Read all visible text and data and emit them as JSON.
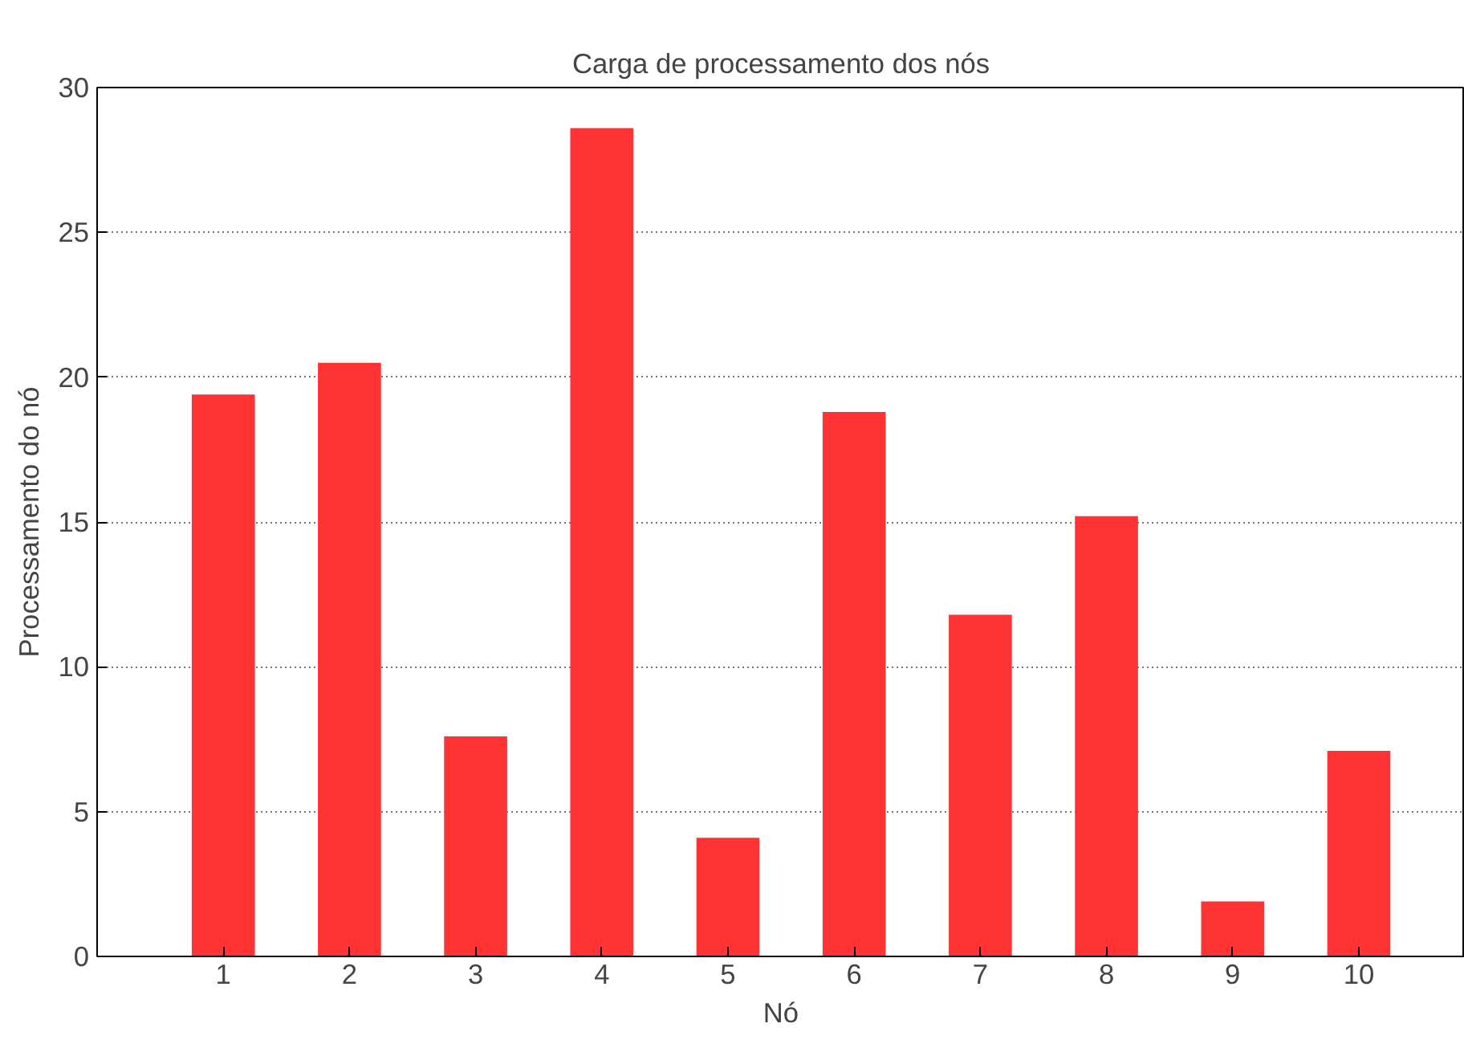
{
  "chart_data": {
    "type": "bar",
    "title": "Carga de processamento dos nós",
    "xlabel": "Nó",
    "ylabel": "Processamento do nó",
    "categories": [
      "1",
      "2",
      "3",
      "4",
      "5",
      "6",
      "7",
      "8",
      "9",
      "10"
    ],
    "values": [
      19.4,
      20.5,
      7.6,
      28.6,
      4.1,
      18.8,
      11.8,
      15.2,
      1.9,
      7.1
    ],
    "color": "#ff3333",
    "ylim": [
      0,
      30
    ],
    "yticks": [
      0,
      5,
      10,
      15,
      20,
      25,
      30
    ],
    "grid": "y"
  }
}
